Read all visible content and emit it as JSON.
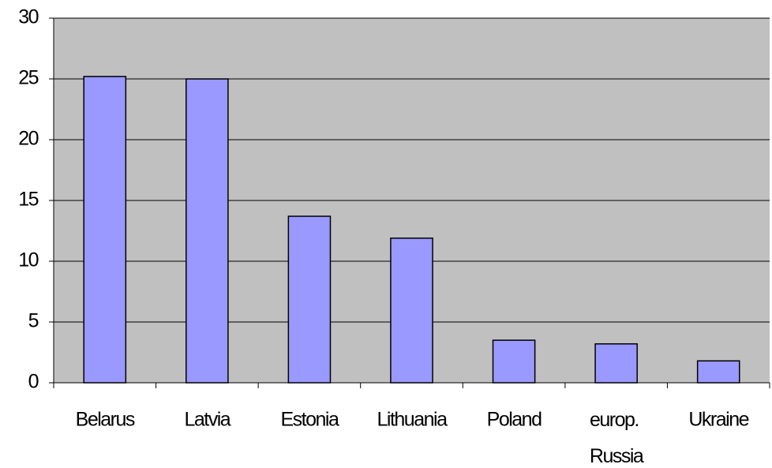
{
  "chart_data": {
    "type": "bar",
    "categories": [
      "Belarus",
      "Latvia",
      "Estonia",
      "Lithuania",
      "Poland",
      "europ. Russia",
      "Ukraine"
    ],
    "values": [
      25.2,
      25.0,
      13.7,
      11.9,
      3.5,
      3.2,
      1.8
    ],
    "color": "#9999ff",
    "ylim": [
      0,
      30
    ],
    "yticks": [
      0,
      5,
      10,
      15,
      20,
      25,
      30
    ],
    "grid": true
  }
}
